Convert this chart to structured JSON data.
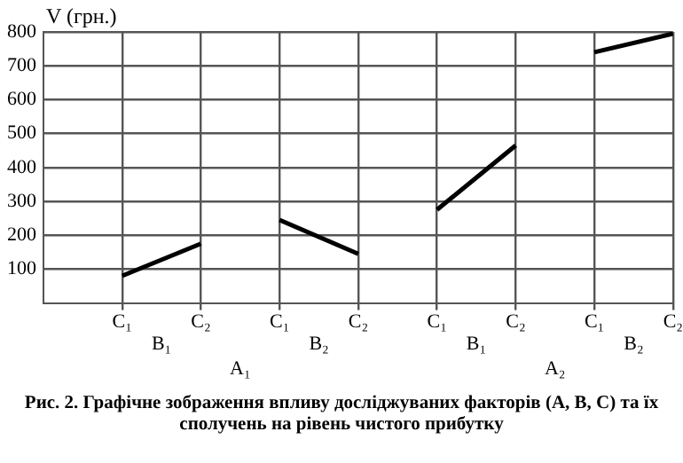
{
  "chart_data": {
    "type": "line",
    "title": "Рис. 2. Графічне зображення впливу досліджуваних факторів (А, В, С) та їх сполучень на рівень чистого прибутку",
    "ylabel": "V (грн.)",
    "categories": [
      "C₁",
      "C₂",
      "C₁",
      "C₂",
      "C₁",
      "C₂",
      "C₁",
      "C₂"
    ],
    "series": [
      {
        "color": "#000000",
        "values": [
          80,
          175,
          null,
          null,
          null,
          null,
          null,
          null
        ]
      },
      {
        "color": "#000000",
        "values": [
          null,
          null,
          245,
          145,
          null,
          null,
          null,
          null
        ]
      },
      {
        "color": "#000000",
        "values": [
          null,
          null,
          null,
          null,
          275,
          465,
          null,
          null
        ]
      },
      {
        "color": "#000000",
        "values": [
          null,
          null,
          null,
          null,
          null,
          null,
          740,
          795
        ]
      }
    ],
    "ylim": [
      0,
      800
    ],
    "yticks": [
      100,
      200,
      300,
      400,
      500,
      600,
      700,
      800
    ],
    "grid": true,
    "legend": false,
    "marker": "none",
    "annotations": [
      "B₁",
      "B₂",
      "B₁",
      "B₂",
      "A₁",
      "A₂"
    ]
  }
}
